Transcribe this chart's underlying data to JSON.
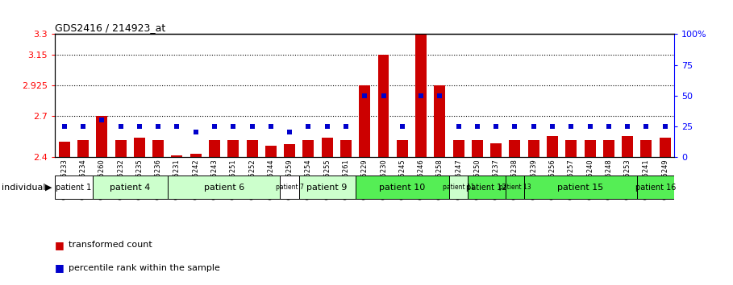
{
  "title": "GDS2416 / 214923_at",
  "samples": [
    "GSM135233",
    "GSM135234",
    "GSM135260",
    "GSM135232",
    "GSM135235",
    "GSM135236",
    "GSM135231",
    "GSM135242",
    "GSM135243",
    "GSM135251",
    "GSM135252",
    "GSM135244",
    "GSM135259",
    "GSM135254",
    "GSM135255",
    "GSM135261",
    "GSM135229",
    "GSM135230",
    "GSM135245",
    "GSM135246",
    "GSM135258",
    "GSM135247",
    "GSM135250",
    "GSM135237",
    "GSM135238",
    "GSM135239",
    "GSM135256",
    "GSM135257",
    "GSM135240",
    "GSM135248",
    "GSM135253",
    "GSM135241",
    "GSM135249"
  ],
  "bar_values": [
    2.51,
    2.52,
    2.7,
    2.52,
    2.54,
    2.52,
    2.41,
    2.42,
    2.52,
    2.52,
    2.52,
    2.48,
    2.49,
    2.52,
    2.54,
    2.52,
    2.925,
    3.15,
    2.52,
    3.3,
    2.925,
    2.52,
    2.52,
    2.5,
    2.52,
    2.52,
    2.55,
    2.52,
    2.52,
    2.52,
    2.55,
    2.52,
    2.54
  ],
  "percentile_values": [
    25,
    25,
    30,
    25,
    25,
    25,
    25,
    20,
    25,
    25,
    25,
    25,
    20,
    25,
    25,
    25,
    50,
    50,
    25,
    50,
    50,
    25,
    25,
    25,
    25,
    25,
    25,
    25,
    25,
    25,
    25,
    25,
    25
  ],
  "patient_groups": [
    {
      "label": "patient 1",
      "start": 0,
      "end": 2,
      "color": "#ffffff"
    },
    {
      "label": "patient 4",
      "start": 2,
      "end": 6,
      "color": "#ccffcc"
    },
    {
      "label": "patient 6",
      "start": 6,
      "end": 12,
      "color": "#ccffcc"
    },
    {
      "label": "patient 7",
      "start": 12,
      "end": 13,
      "color": "#ffffff"
    },
    {
      "label": "patient 9",
      "start": 13,
      "end": 16,
      "color": "#ccffcc"
    },
    {
      "label": "patient 10",
      "start": 16,
      "end": 21,
      "color": "#55ee55"
    },
    {
      "label": "patient 11",
      "start": 21,
      "end": 22,
      "color": "#ccffcc"
    },
    {
      "label": "patient 12",
      "start": 22,
      "end": 24,
      "color": "#55ee55"
    },
    {
      "label": "patient 13",
      "start": 24,
      "end": 25,
      "color": "#55ee55"
    },
    {
      "label": "patient 15",
      "start": 25,
      "end": 31,
      "color": "#55ee55"
    },
    {
      "label": "patient 16",
      "start": 31,
      "end": 33,
      "color": "#55ee55"
    }
  ],
  "ymin": 2.4,
  "ymax": 3.3,
  "yticks": [
    2.4,
    2.7,
    2.925,
    3.15,
    3.3
  ],
  "right_yticks": [
    0,
    25,
    50,
    75,
    100
  ],
  "dotted_lines": [
    2.7,
    2.925,
    3.15
  ],
  "bar_color": "#cc0000",
  "dot_color": "#0000cc",
  "bar_width": 0.6
}
